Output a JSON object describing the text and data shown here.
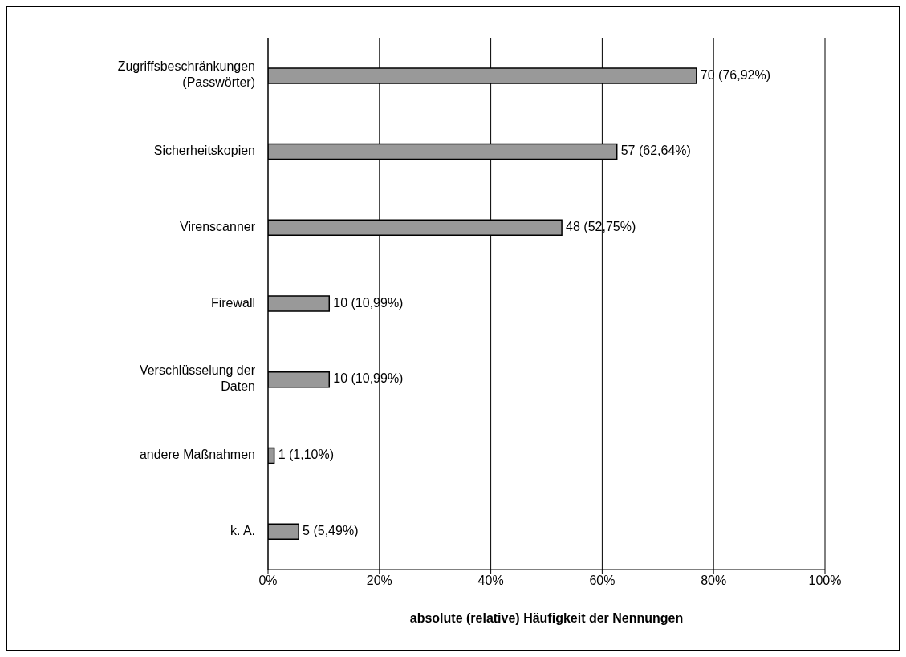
{
  "chart_data": {
    "type": "bar",
    "orientation": "horizontal",
    "xlabel": "absolute (relative) Häufigkeit der Nennungen",
    "categories": [
      "Zugriffsbeschränkungen (Passwörter)",
      "Sicherheitskopien",
      "Virenscanner",
      "Firewall",
      "Verschlüsselung der Daten",
      "andere Maßnahmen",
      "k. A."
    ],
    "values": [
      76.92,
      62.64,
      52.75,
      10.99,
      10.99,
      1.1,
      5.49
    ],
    "value_labels": [
      "70 (76,92%)",
      "57 (62,64%)",
      "48 (52,75%)",
      "10 (10,99%)",
      "10 (10,99%)",
      "1 (1,10%)",
      "5 (5,49%)"
    ],
    "color": "#999999",
    "xlim": [
      0,
      100
    ],
    "xticks": [
      {
        "value": 0,
        "label": "0%"
      },
      {
        "value": 20,
        "label": "20%"
      },
      {
        "value": 40,
        "label": "40%"
      },
      {
        "value": 60,
        "label": "60%"
      },
      {
        "value": 80,
        "label": "80%"
      },
      {
        "value": 100,
        "label": "100%"
      }
    ],
    "grid": "x"
  }
}
